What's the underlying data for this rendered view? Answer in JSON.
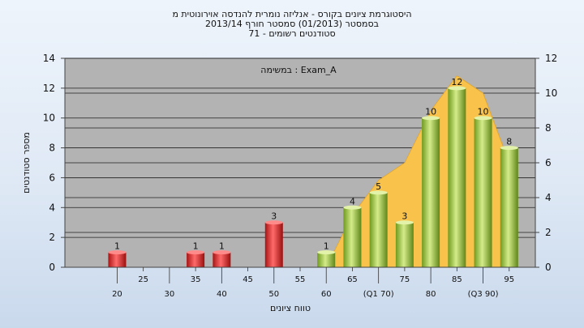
{
  "chart_data": {
    "type": "bar",
    "title_lines": [
      "היסטוגרמת ציונים בקורס - אנליזה נומרית להנדסה אוירונוטית מ",
      "בסמסטר  (01/2013)  סמסטר חורף  2013/14",
      "סטודנטים רשומים - 71"
    ],
    "ylabel": "מספר סטודנטים",
    "xlabel": "טווח ציונים",
    "ylim": [
      0,
      14
    ],
    "yticks": [
      0,
      2,
      4,
      6,
      8,
      10,
      12,
      14
    ],
    "y2lim": [
      0,
      12
    ],
    "y2ticks": [
      0,
      2,
      4,
      6,
      8,
      10,
      12
    ],
    "xlim": [
      10,
      100
    ],
    "xtick_labels": [
      {
        "x": 20,
        "label": "20",
        "row": 2
      },
      {
        "x": 25,
        "label": "25",
        "row": 1
      },
      {
        "x": 30,
        "label": "30",
        "row": 2
      },
      {
        "x": 35,
        "label": "35",
        "row": 1
      },
      {
        "x": 40,
        "label": "40",
        "row": 2
      },
      {
        "x": 45,
        "label": "45",
        "row": 1
      },
      {
        "x": 50,
        "label": "50",
        "row": 2
      },
      {
        "x": 55,
        "label": "55",
        "row": 1
      },
      {
        "x": 60,
        "label": "60",
        "row": 2
      },
      {
        "x": 65,
        "label": "65",
        "row": 1
      },
      {
        "x": 70,
        "label": "(Q1 70)",
        "row": 2
      },
      {
        "x": 75,
        "label": "75",
        "row": 1
      },
      {
        "x": 80,
        "label": "80",
        "row": 2
      },
      {
        "x": 85,
        "label": "85",
        "row": 1
      },
      {
        "x": 90,
        "label": "(Q3 90)",
        "row": 2
      },
      {
        "x": 95,
        "label": "95",
        "row": 1
      }
    ],
    "bars": [
      {
        "x": 20,
        "value": 1,
        "status": "fail"
      },
      {
        "x": 35,
        "value": 1,
        "status": "fail"
      },
      {
        "x": 40,
        "value": 1,
        "status": "fail"
      },
      {
        "x": 50,
        "value": 3,
        "status": "fail"
      },
      {
        "x": 60,
        "value": 1,
        "status": "pass"
      },
      {
        "x": 65,
        "value": 4,
        "status": "pass"
      },
      {
        "x": 70,
        "value": 5,
        "status": "pass"
      },
      {
        "x": 75,
        "value": 3,
        "status": "pass"
      },
      {
        "x": 80,
        "value": 10,
        "status": "pass"
      },
      {
        "x": 85,
        "value": 12,
        "status": "pass"
      },
      {
        "x": 90,
        "value": 10,
        "status": "pass"
      },
      {
        "x": 95,
        "value": 8,
        "status": "pass"
      }
    ],
    "area_series": {
      "axis": "right",
      "points": [
        [
          60,
          0
        ],
        [
          65,
          3
        ],
        [
          70,
          5
        ],
        [
          75,
          6
        ],
        [
          80,
          9
        ],
        [
          85,
          11
        ],
        [
          90,
          10
        ],
        [
          95,
          6
        ]
      ]
    },
    "annotation": "במשימה : Exam_A",
    "grid": true,
    "colors": {
      "fail_bar": "#dd3333",
      "pass_bar": "#9cc43c",
      "area": "#f9c24b",
      "plot_bg": "#b3b3b3"
    }
  }
}
